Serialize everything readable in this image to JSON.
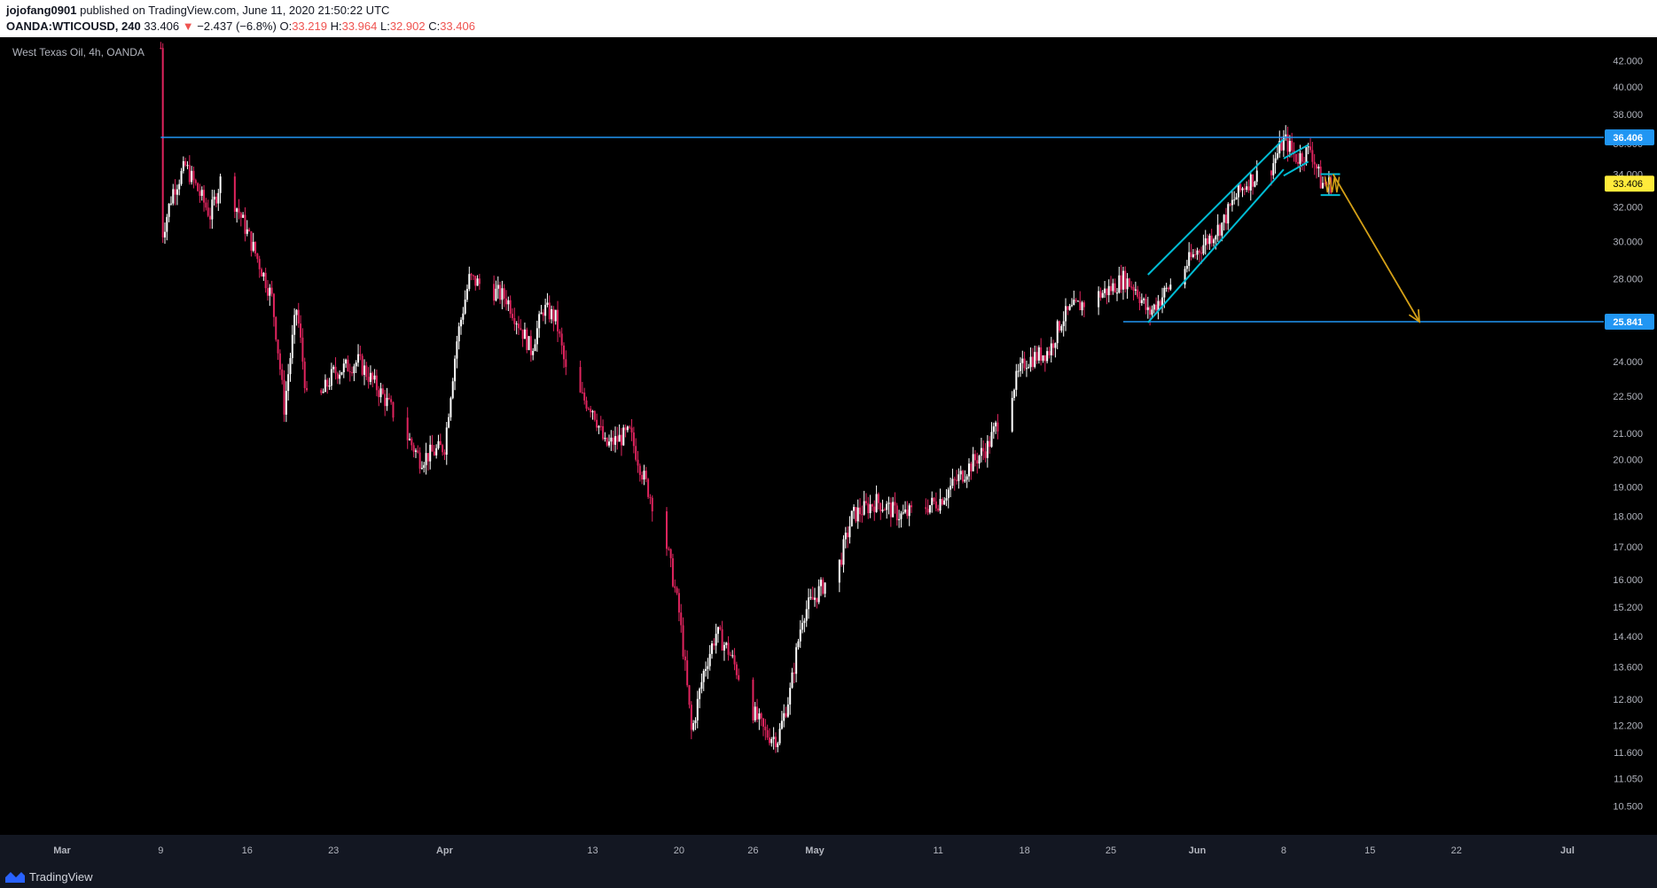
{
  "header": {
    "publisher": "jojofang0901",
    "published_text": "published on TradingView.com, June 11, 2020 21:50:22 UTC",
    "symbol": "OANDA:WTICOUSD, 240",
    "last": "33.406",
    "change": "−2.437 (−6.8%)",
    "o_label": "O:",
    "o_val": "33.219",
    "h_label": "H:",
    "h_val": "33.964",
    "l_label": "L:",
    "l_val": "32.902",
    "c_label": "C:",
    "c_val": "33.406"
  },
  "footer": {
    "brand": "TradingView"
  },
  "colors": {
    "background": "#000000",
    "up_candle": "#ffffff",
    "down_candle": "#e0245e",
    "hline": "#2196f3",
    "channel": "#00bcd4",
    "arrow": "#d4a017",
    "current_price_bg": "#ffeb3b"
  },
  "chart_data": {
    "type": "candlestick",
    "title": "West Texas Oil, 4h, OANDA",
    "y_scale": "log",
    "ylim": [
      10.2,
      43.5
    ],
    "x_ticks": [
      "Mar",
      "9",
      "16",
      "23",
      "Apr",
      "13",
      "20",
      "26",
      "May",
      "11",
      "18",
      "25",
      "Jun",
      "8",
      "15",
      "22",
      "Jul"
    ],
    "y_ticks": [
      "42.000",
      "40.000",
      "38.000",
      "36.000",
      "34.000",
      "32.000",
      "30.000",
      "28.000",
      "26.000",
      "24.000",
      "22.500",
      "21.000",
      "20.000",
      "19.000",
      "18.000",
      "17.000",
      "16.000",
      "15.200",
      "14.400",
      "13.600",
      "12.800",
      "12.200",
      "11.600",
      "11.050",
      "10.500"
    ],
    "price_path": [
      {
        "date": "2020-03-09",
        "price": 43.0
      },
      {
        "date": "2020-03-09",
        "price": 30.0
      },
      {
        "date": "2020-03-10",
        "price": 33.0
      },
      {
        "date": "2020-03-11",
        "price": 34.5
      },
      {
        "date": "2020-03-12",
        "price": 33.0
      },
      {
        "date": "2020-03-13",
        "price": 31.5
      },
      {
        "date": "2020-03-14",
        "price": 34.0
      },
      {
        "date": "2020-03-16",
        "price": 30.5
      },
      {
        "date": "2020-03-18",
        "price": 27.0
      },
      {
        "date": "2020-03-19",
        "price": 22.0
      },
      {
        "date": "2020-03-20",
        "price": 26.5
      },
      {
        "date": "2020-03-21",
        "price": 21.5
      },
      {
        "date": "2020-03-23",
        "price": 23.5
      },
      {
        "date": "2020-03-25",
        "price": 24.0
      },
      {
        "date": "2020-03-27",
        "price": 22.5
      },
      {
        "date": "2020-03-30",
        "price": 20.0
      },
      {
        "date": "2020-04-01",
        "price": 20.5
      },
      {
        "date": "2020-04-02",
        "price": 25.0
      },
      {
        "date": "2020-04-03",
        "price": 28.0
      },
      {
        "date": "2020-04-06",
        "price": 27.0
      },
      {
        "date": "2020-04-08",
        "price": 24.5
      },
      {
        "date": "2020-04-09",
        "price": 26.5
      },
      {
        "date": "2020-04-10",
        "price": 26.0
      },
      {
        "date": "2020-04-11",
        "price": 23.0
      },
      {
        "date": "2020-04-13",
        "price": 22.0
      },
      {
        "date": "2020-04-14",
        "price": 20.5
      },
      {
        "date": "2020-04-16",
        "price": 21.0
      },
      {
        "date": "2020-04-17",
        "price": 19.5
      },
      {
        "date": "2020-04-19",
        "price": 17.0
      },
      {
        "date": "2020-04-20",
        "price": 15.0
      },
      {
        "date": "2020-04-21",
        "price": 12.0
      },
      {
        "date": "2020-04-22",
        "price": 13.5
      },
      {
        "date": "2020-04-23",
        "price": 14.5
      },
      {
        "date": "2020-04-24",
        "price": 14.0
      },
      {
        "date": "2020-04-26",
        "price": 12.5
      },
      {
        "date": "2020-04-27",
        "price": 12.0
      },
      {
        "date": "2020-04-28",
        "price": 11.9
      },
      {
        "date": "2020-04-29",
        "price": 13.0
      },
      {
        "date": "2020-04-30",
        "price": 15.0
      },
      {
        "date": "2020-05-01",
        "price": 15.5
      },
      {
        "date": "2020-05-03",
        "price": 16.5
      },
      {
        "date": "2020-05-04",
        "price": 18.0
      },
      {
        "date": "2020-05-06",
        "price": 18.5
      },
      {
        "date": "2020-05-08",
        "price": 18.0
      },
      {
        "date": "2020-05-11",
        "price": 18.5
      },
      {
        "date": "2020-05-13",
        "price": 19.5
      },
      {
        "date": "2020-05-15",
        "price": 20.5
      },
      {
        "date": "2020-05-18",
        "price": 24.0
      },
      {
        "date": "2020-05-20",
        "price": 24.5
      },
      {
        "date": "2020-05-21",
        "price": 26.0
      },
      {
        "date": "2020-05-22",
        "price": 26.5
      },
      {
        "date": "2020-05-25",
        "price": 27.5
      },
      {
        "date": "2020-05-26",
        "price": 28.0
      },
      {
        "date": "2020-05-27",
        "price": 27.5
      },
      {
        "date": "2020-05-28",
        "price": 26.2
      },
      {
        "date": "2020-05-29",
        "price": 27.0
      },
      {
        "date": "2020-06-01",
        "price": 29.5
      },
      {
        "date": "2020-06-03",
        "price": 31.0
      },
      {
        "date": "2020-06-04",
        "price": 32.5
      },
      {
        "date": "2020-06-05",
        "price": 33.5
      },
      {
        "date": "2020-06-07",
        "price": 34.5
      },
      {
        "date": "2020-06-08",
        "price": 36.3
      },
      {
        "date": "2020-06-09",
        "price": 35.0
      },
      {
        "date": "2020-06-10",
        "price": 35.5
      },
      {
        "date": "2020-06-10",
        "price": 36.0
      },
      {
        "date": "2020-06-11",
        "price": 33.4
      }
    ],
    "horizontal_lines": [
      {
        "price": 36.406,
        "label": "36.406"
      },
      {
        "price": 25.841,
        "label": "25.841"
      }
    ],
    "current_price": {
      "price": 33.406,
      "label": "33.406"
    },
    "annotations": [
      {
        "type": "channel",
        "from_date": "2020-05-28",
        "to_date": "2020-06-08",
        "lower_start": 25.8,
        "lower_end": 34.3,
        "upper_start": 28.2,
        "upper_end": 36.3
      },
      {
        "type": "channel",
        "from_date": "2020-06-08",
        "to_date": "2020-06-10",
        "lower_start": 33.9,
        "lower_end": 34.8,
        "upper_start": 35.0,
        "upper_end": 35.9
      },
      {
        "type": "pattern",
        "from_date": "2020-06-11",
        "to_date": "2020-06-12",
        "top": 34.0,
        "bottom": 32.7
      },
      {
        "type": "arrow",
        "from_date": "2020-06-12",
        "to_date": "2020-06-19",
        "from_price": 34.0,
        "to_price": 25.841
      }
    ]
  }
}
